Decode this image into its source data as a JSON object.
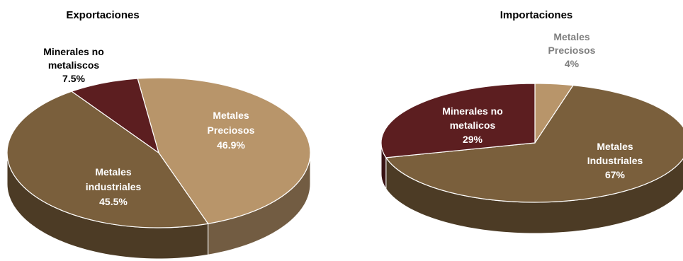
{
  "chart_data": [
    {
      "type": "pie",
      "title": "Exportaciones",
      "slices": [
        {
          "label_lines": [
            "Metales",
            "Preciosos"
          ],
          "value_text": "46.9%",
          "value": 46.9,
          "color": "#B8956A",
          "label_color": "#ffffff"
        },
        {
          "label_lines": [
            "Metales",
            "industriales"
          ],
          "value_text": "45.5%",
          "value": 45.5,
          "color": "#7A5F3C",
          "label_color": "#ffffff"
        },
        {
          "label_lines": [
            "Minerales no",
            "metaliscos"
          ],
          "value_text": "7.5%",
          "value": 7.5,
          "color": "#5C1E20",
          "label_color": "#000000"
        }
      ]
    },
    {
      "type": "pie",
      "title": "Importaciones",
      "slices": [
        {
          "label_lines": [
            "Metales",
            "Preciosos"
          ],
          "value_text": "4%",
          "value": 4,
          "color": "#B8956A",
          "label_color": "#7F7F7F"
        },
        {
          "label_lines": [
            "Metales",
            "Industriales"
          ],
          "value_text": "67%",
          "value": 67,
          "color": "#7A5F3C",
          "label_color": "#ffffff"
        },
        {
          "label_lines": [
            "Minerales no",
            "metalicos"
          ],
          "value_text": "29%",
          "value": 29,
          "color": "#5C1E20",
          "label_color": "#ffffff"
        }
      ]
    }
  ]
}
